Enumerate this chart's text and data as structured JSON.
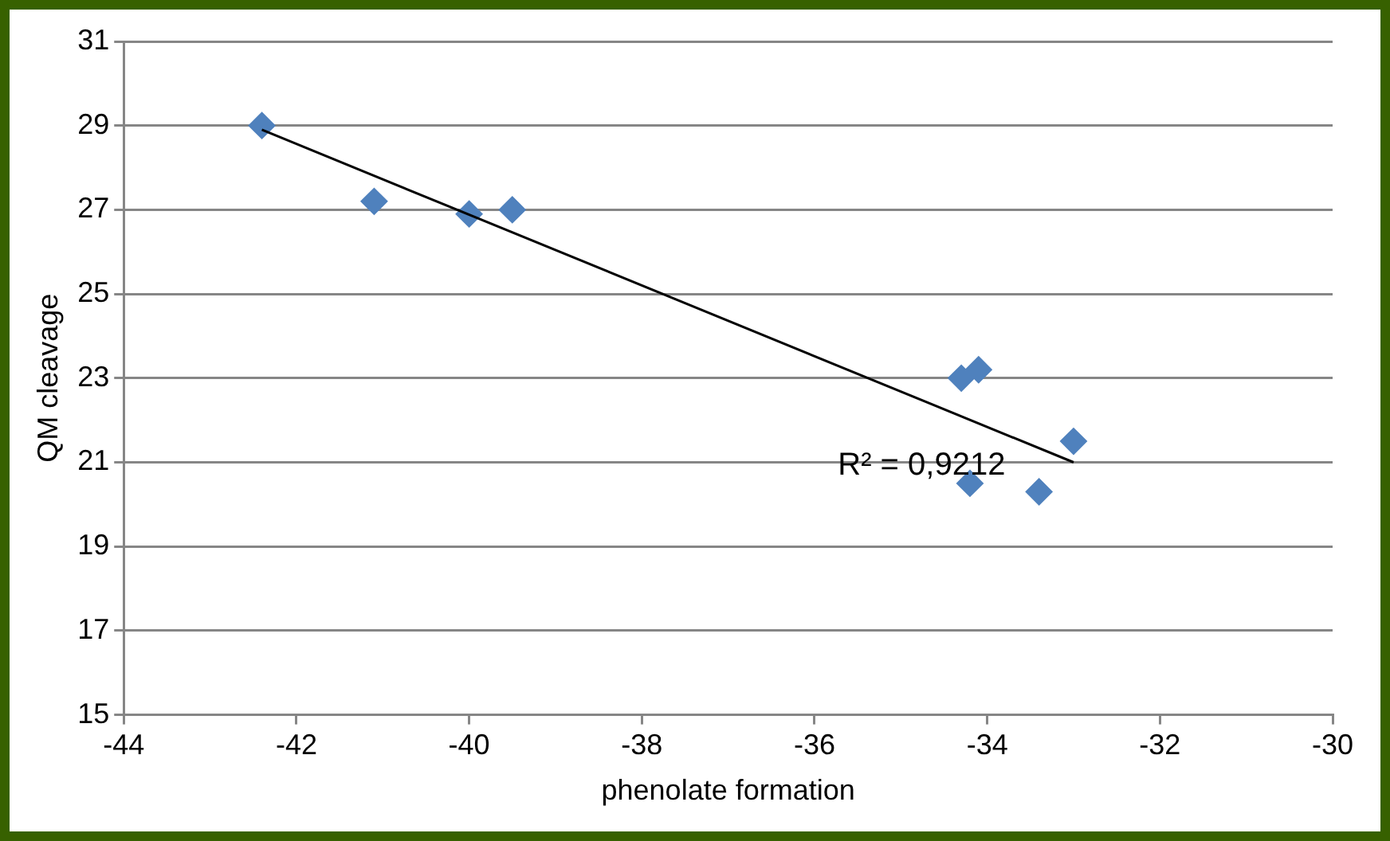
{
  "chart_data": {
    "type": "scatter",
    "xlabel": "phenolate formation",
    "ylabel": "QM cleavage",
    "xlim": [
      -44,
      -30
    ],
    "xticks": [
      -44,
      -42,
      -40,
      -38,
      -36,
      -34,
      -32,
      -30
    ],
    "ylim": [
      15,
      31
    ],
    "yticks": [
      15,
      17,
      19,
      21,
      23,
      25,
      27,
      29,
      31
    ],
    "grid": "y",
    "legend": false,
    "marker": "diamond",
    "series": [
      {
        "color": "#4f81bd",
        "x": [
          -42.4,
          -41.1,
          -40.0,
          -39.5,
          -34.3,
          -34.1,
          -34.2,
          -33.4,
          -33.0
        ],
        "values": [
          29.0,
          27.2,
          26.9,
          27.0,
          23.0,
          23.2,
          20.5,
          20.3,
          21.5
        ]
      },
      {
        "type": "line",
        "color": "#000000",
        "marker": "none",
        "x": [
          -42.4,
          -33.0
        ],
        "values": [
          28.9,
          21.0
        ]
      }
    ],
    "annotations": [
      "R² = 0,9212"
    ]
  }
}
